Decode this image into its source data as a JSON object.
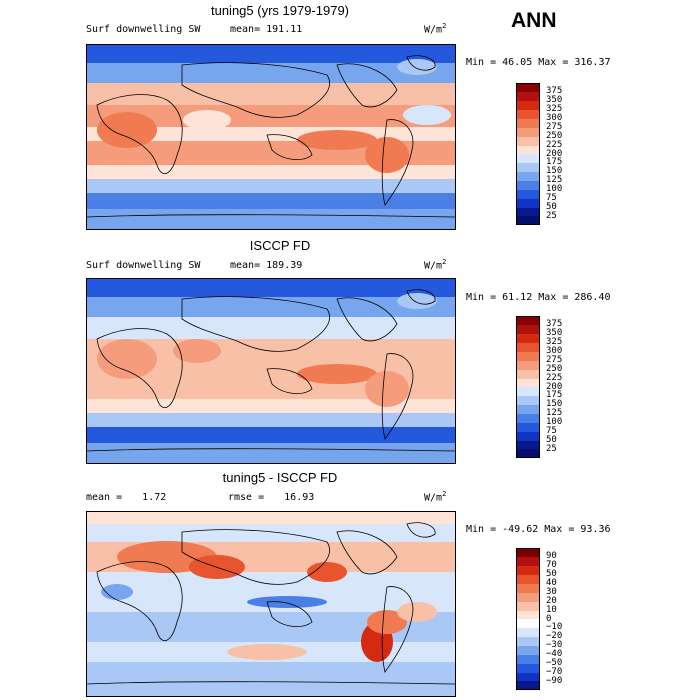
{
  "season": "ANN",
  "panels": [
    {
      "title": "tuning5 (yrs 1979-1979)",
      "left_label": "Surf downwelling SW",
      "stat_label": "mean=",
      "stat_value": "191.11",
      "units_base": "W/m",
      "units_exp": "2",
      "minmax": "Min =  46.05 Max = 316.37",
      "levels": [
        "375",
        "350",
        "325",
        "300",
        "275",
        "250",
        "225",
        "200",
        "175",
        "150",
        "125",
        "100",
        "75",
        "50",
        "25"
      ]
    },
    {
      "title": "ISCCP FD",
      "left_label": "Surf downwelling SW",
      "stat_label": "mean=",
      "stat_value": "189.39",
      "units_base": "W/m",
      "units_exp": "2",
      "minmax": "Min =  61.12 Max = 286.40",
      "levels": [
        "375",
        "350",
        "325",
        "300",
        "275",
        "250",
        "225",
        "200",
        "175",
        "150",
        "125",
        "100",
        "75",
        "50",
        "25"
      ]
    },
    {
      "title": "tuning5 - ISCCP FD",
      "mean_label": "mean =",
      "mean_value": "1.72",
      "rmse_label": "rmse =",
      "rmse_value": "16.93",
      "units_base": "W/m",
      "units_exp": "2",
      "minmax": "Min = -49.62 Max =  93.36",
      "levels": [
        "90",
        "70",
        "50",
        "40",
        "30",
        "20",
        "10",
        "0",
        "−10",
        "−20",
        "−30",
        "−40",
        "−50",
        "−70",
        "−90"
      ]
    }
  ],
  "colors": {
    "abs_scale": [
      "#8b0000",
      "#b01010",
      "#d42a10",
      "#e8542e",
      "#f07a52",
      "#f59c7c",
      "#f9c0a8",
      "#fde4d6",
      "#d8e6fb",
      "#a9c8f6",
      "#78a6ee",
      "#4a7fe6",
      "#2459de",
      "#1034c8",
      "#0a1890",
      "#06106a"
    ],
    "diff_scale": [
      "#7a0000",
      "#b01010",
      "#d42a10",
      "#e8542e",
      "#f07a52",
      "#f59c7c",
      "#f9c0a8",
      "#fde4d6",
      "#ffffff",
      "#d8e6fb",
      "#a9c8f6",
      "#78a6ee",
      "#4a7fe6",
      "#2459de",
      "#1034c8",
      "#0a1890"
    ]
  }
}
